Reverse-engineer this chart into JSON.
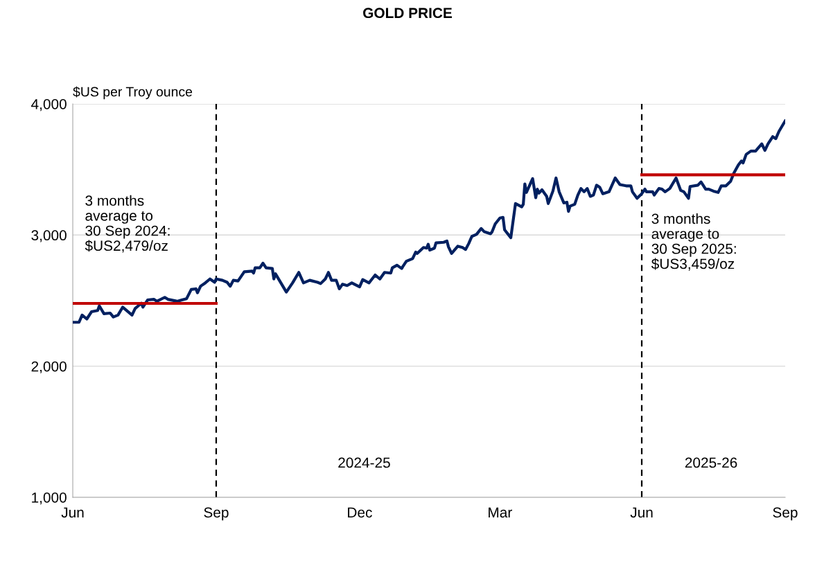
{
  "chart_data": {
    "type": "line",
    "title": "GOLD PRICE",
    "ylabel": "$US per Troy ounce",
    "xlim": [
      "2024-06-30",
      "2025-09-30"
    ],
    "xticks": [
      {
        "value": "2024-06-30",
        "label": "Jun"
      },
      {
        "value": "2024-09-30",
        "label": "Sep"
      },
      {
        "value": "2024-12-31",
        "label": "Dec"
      },
      {
        "value": "2025-03-31",
        "label": "Mar"
      },
      {
        "value": "2025-06-30",
        "label": "Jun"
      },
      {
        "value": "2025-09-30",
        "label": "Sep"
      }
    ],
    "ylim": [
      1000,
      4000
    ],
    "yticks": [
      {
        "value": 1000,
        "label": "1,000"
      },
      {
        "value": 2000,
        "label": "2,000"
      },
      {
        "value": 3000,
        "label": "3,000"
      },
      {
        "value": 4000,
        "label": "4,000"
      }
    ],
    "grid": "y",
    "marker": "none",
    "line_style": "solid",
    "series": [
      {
        "color": "#002060",
        "x": [
          "2024-06-30",
          "2024-07-04",
          "2024-07-06",
          "2024-07-09",
          "2024-07-12",
          "2024-07-16",
          "2024-07-17",
          "2024-07-20",
          "2024-07-24",
          "2024-07-26",
          "2024-07-29",
          "2024-08-01",
          "2024-08-07",
          "2024-08-09",
          "2024-08-13",
          "2024-08-14",
          "2024-08-17",
          "2024-08-21",
          "2024-08-23",
          "2024-08-28",
          "2024-08-30",
          "2024-09-05",
          "2024-09-08",
          "2024-09-11",
          "2024-09-14",
          "2024-09-17",
          "2024-09-18",
          "2024-09-20",
          "2024-09-23",
          "2024-09-26",
          "2024-09-29",
          "2024-09-30",
          "2024-10-04",
          "2024-10-07",
          "2024-10-09",
          "2024-10-11",
          "2024-10-14",
          "2024-10-18",
          "2024-10-23",
          "2024-10-24",
          "2024-10-25",
          "2024-10-28",
          "2024-10-30",
          "2024-11-01",
          "2024-11-05",
          "2024-11-06",
          "2024-11-07",
          "2024-11-14",
          "2024-11-18",
          "2024-11-22",
          "2024-11-25",
          "2024-11-29",
          "2024-12-04",
          "2024-12-06",
          "2024-12-09",
          "2024-12-11",
          "2024-12-13",
          "2024-12-16",
          "2024-12-18",
          "2024-12-20",
          "2024-12-23",
          "2024-12-26",
          "2024-12-31",
          "2025-01-02",
          "2025-01-06",
          "2025-01-10",
          "2025-01-13",
          "2025-01-16",
          "2025-01-20",
          "2025-01-21",
          "2025-01-24",
          "2025-01-27",
          "2025-01-28",
          "2025-01-30",
          "2025-02-03",
          "2025-02-05",
          "2025-02-06",
          "2025-02-10",
          "2025-02-12",
          "2025-02-13",
          "2025-02-14",
          "2025-02-17",
          "2025-02-18",
          "2025-02-23",
          "2025-02-25",
          "2025-02-26",
          "2025-02-28",
          "2025-03-04",
          "2025-03-07",
          "2025-03-09",
          "2025-03-11",
          "2025-03-13",
          "2025-03-16",
          "2025-03-19",
          "2025-03-21",
          "2025-03-25",
          "2025-03-26",
          "2025-03-28",
          "2025-03-31",
          "2025-04-02",
          "2025-04-03",
          "2025-04-07",
          "2025-04-10",
          "2025-04-14",
          "2025-04-15",
          "2025-04-16",
          "2025-04-17",
          "2025-04-21",
          "2025-04-23",
          "2025-04-24",
          "2025-04-25",
          "2025-04-27",
          "2025-04-30",
          "2025-05-01",
          "2025-05-04",
          "2025-05-06",
          "2025-05-08",
          "2025-05-11",
          "2025-05-13",
          "2025-05-14",
          "2025-05-15",
          "2025-05-18",
          "2025-05-20",
          "2025-05-22",
          "2025-05-24",
          "2025-05-26",
          "2025-05-28",
          "2025-05-30",
          "2025-06-01",
          "2025-06-03",
          "2025-06-05",
          "2025-06-09",
          "2025-06-13",
          "2025-06-16",
          "2025-06-20",
          "2025-06-23",
          "2025-06-24",
          "2025-06-27",
          "2025-06-30",
          "2025-07-02",
          "2025-07-03",
          "2025-07-07",
          "2025-07-08",
          "2025-07-11",
          "2025-07-13",
          "2025-07-15",
          "2025-07-18",
          "2025-07-22",
          "2025-07-25",
          "2025-07-27",
          "2025-07-30",
          "2025-07-31",
          "2025-08-05",
          "2025-08-07",
          "2025-08-10",
          "2025-08-12",
          "2025-08-15",
          "2025-08-18",
          "2025-08-20",
          "2025-08-23",
          "2025-08-26",
          "2025-08-28",
          "2025-08-31",
          "2025-09-02",
          "2025-09-03",
          "2025-09-05",
          "2025-09-08",
          "2025-09-11",
          "2025-09-15",
          "2025-09-17",
          "2025-09-19",
          "2025-09-22",
          "2025-09-24",
          "2025-09-26",
          "2025-09-30"
        ],
        "values": [
          2335,
          2335,
          2390,
          2360,
          2415,
          2425,
          2460,
          2400,
          2405,
          2375,
          2390,
          2450,
          2390,
          2440,
          2480,
          2450,
          2505,
          2510,
          2495,
          2525,
          2510,
          2495,
          2505,
          2515,
          2585,
          2590,
          2560,
          2610,
          2635,
          2665,
          2640,
          2665,
          2655,
          2640,
          2610,
          2655,
          2650,
          2720,
          2725,
          2710,
          2750,
          2750,
          2785,
          2750,
          2745,
          2665,
          2705,
          2565,
          2635,
          2715,
          2635,
          2655,
          2640,
          2630,
          2665,
          2715,
          2655,
          2655,
          2590,
          2625,
          2615,
          2635,
          2605,
          2660,
          2635,
          2695,
          2665,
          2715,
          2710,
          2750,
          2770,
          2745,
          2765,
          2800,
          2820,
          2870,
          2860,
          2905,
          2900,
          2930,
          2885,
          2900,
          2940,
          2945,
          2955,
          2910,
          2860,
          2915,
          2905,
          2890,
          2935,
          2990,
          3005,
          3050,
          3025,
          3010,
          3025,
          3085,
          3130,
          3135,
          3040,
          2980,
          3240,
          3215,
          3235,
          3390,
          3325,
          3430,
          3285,
          3350,
          3320,
          3345,
          3295,
          3240,
          3335,
          3435,
          3330,
          3245,
          3250,
          3180,
          3220,
          3235,
          3305,
          3355,
          3330,
          3355,
          3295,
          3305,
          3380,
          3365,
          3315,
          3330,
          3435,
          3385,
          3375,
          3375,
          3330,
          3280,
          3315,
          3350,
          3330,
          3330,
          3305,
          3355,
          3350,
          3330,
          3355,
          3435,
          3340,
          3330,
          3280,
          3370,
          3380,
          3405,
          3350,
          3350,
          3335,
          3325,
          3375,
          3375,
          3410,
          3470,
          3535,
          3565,
          3550,
          3615,
          3640,
          3640,
          3695,
          3645,
          3695,
          3750,
          3735,
          3790,
          3870
        ]
      },
      {
        "color": "#c00000",
        "x": [
          "2024-06-30",
          "2024-09-30"
        ],
        "values": [
          2479,
          2479
        ]
      },
      {
        "color": "#c00000",
        "x": [
          "2025-06-30",
          "2025-09-30"
        ],
        "values": [
          3459,
          3459
        ]
      }
    ],
    "ref_lines": [
      {
        "axis": "x",
        "value": "2024-09-30",
        "color": "#000000",
        "line_style": "dashed"
      },
      {
        "axis": "x",
        "value": "2025-06-30",
        "color": "#000000",
        "line_style": "dashed"
      }
    ],
    "annotations": [
      "3 months\naverage to\n30 Sep 2024:\n$US2,479/oz",
      "3 months\naverage to\n30 Sep 2025:\n$US3,459/oz",
      "2024-25",
      "2025-26"
    ]
  }
}
